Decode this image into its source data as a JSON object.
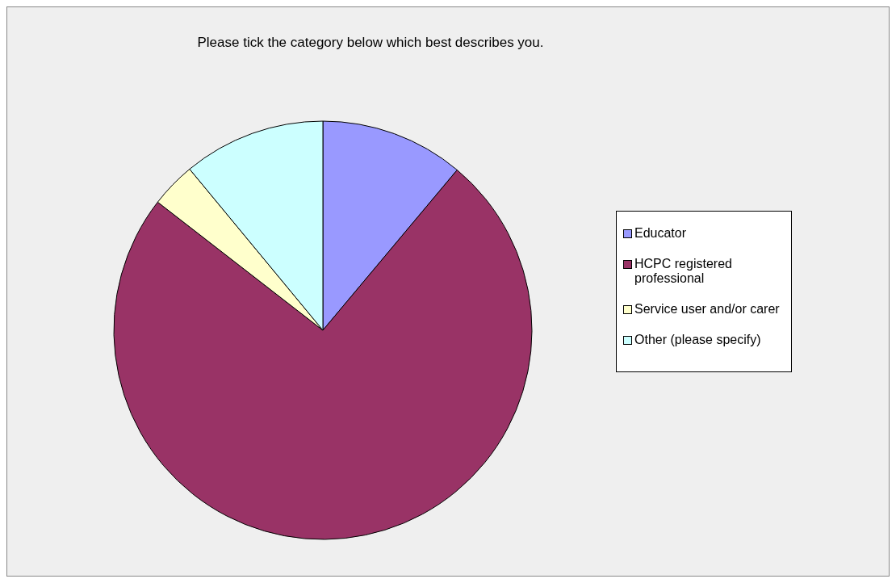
{
  "chart_data": {
    "type": "pie",
    "title": "Please tick the category below which best describes you.",
    "categories": [
      "Educator",
      "HCPC registered professional",
      "Service user and/or carer",
      "Other (please specify)"
    ],
    "values": [
      11.1,
      74.4,
      3.5,
      11.0
    ],
    "colors": [
      "#9999ff",
      "#993366",
      "#ffffcc",
      "#ccffff"
    ],
    "legend": "right"
  }
}
